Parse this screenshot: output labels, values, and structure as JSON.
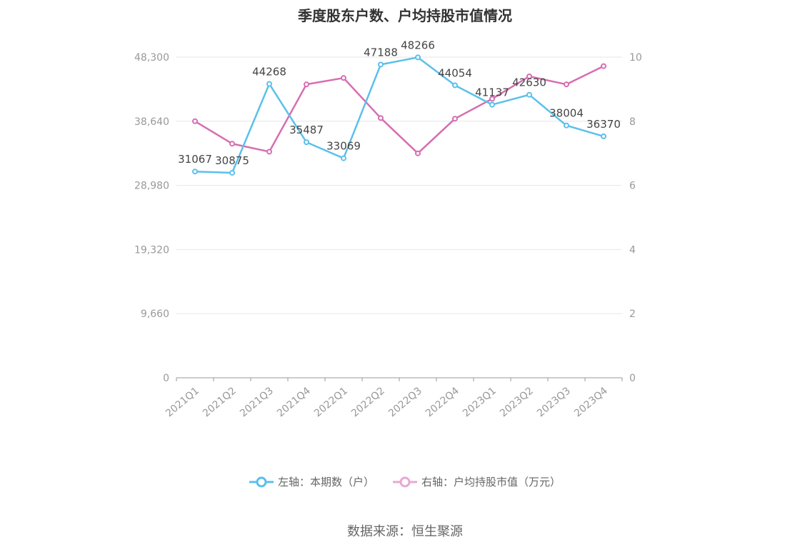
{
  "title": "季度股东户数、户均持股市值情况",
  "source": "数据来源：恒生聚源",
  "colors": {
    "left": "#5bc0eb",
    "right": "#d66eb2",
    "grid": "#e6e6ef",
    "axis": "#999999"
  },
  "chart_data": {
    "type": "line",
    "title": "季度股东户数、户均持股市值情况",
    "categories": [
      "2021Q1",
      "2021Q2",
      "2021Q3",
      "2021Q4",
      "2022Q1",
      "2022Q2",
      "2022Q3",
      "2022Q4",
      "2023Q1",
      "2023Q2",
      "2023Q3",
      "2023Q4"
    ],
    "y_left": {
      "ticks": [
        "0",
        "9,660",
        "19,320",
        "28,980",
        "38,640",
        "48,300"
      ],
      "range": [
        0,
        48300
      ]
    },
    "y_right": {
      "ticks": [
        "0",
        "2",
        "4",
        "6",
        "8",
        "10"
      ],
      "range": [
        0,
        10
      ]
    },
    "series": [
      {
        "name": "左轴：本期数（户）",
        "axis": "left",
        "values": [
          31067,
          30875,
          44268,
          35487,
          33069,
          47188,
          48266,
          44054,
          41137,
          42630,
          38004,
          36370
        ],
        "labels": [
          "31067",
          "30875",
          "44268",
          "35487",
          "33069",
          "47188",
          "48266",
          "44054",
          "41137",
          "42630",
          "38004",
          "36370"
        ]
      },
      {
        "name": "右轴：户均持股市值（万元）",
        "axis": "right",
        "values": [
          8.0,
          7.3,
          7.05,
          9.15,
          9.35,
          8.1,
          7.0,
          8.08,
          8.7,
          9.4,
          9.15,
          9.72
        ]
      }
    ],
    "grid": true,
    "legend_position": "bottom"
  }
}
